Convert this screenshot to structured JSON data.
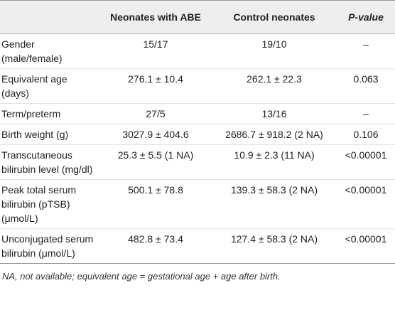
{
  "table": {
    "header": [
      "",
      "Neonates with ABE",
      "Control neonates",
      "P-value"
    ],
    "rows": [
      [
        "Gender (male/female)",
        "15/17",
        "19/10",
        "–"
      ],
      [
        "Equivalent age (days)",
        "276.1 ± 10.4",
        "262.1 ± 22.3",
        "0.063"
      ],
      [
        "Term/preterm",
        "27/5",
        "13/16",
        "–"
      ],
      [
        "Birth weight (g)",
        "3027.9 ± 404.6",
        "2686.7 ± 918.2 (2 NA)",
        "0.106"
      ],
      [
        "Transcutaneous bilirubin level (mg/dl)",
        "25.3 ± 5.5 (1 NA)",
        "10.9 ± 2.3 (11 NA)",
        "<0.00001"
      ],
      [
        "Peak total serum bilirubin (pTSB) (μmol/L)",
        "500.1 ± 78.8",
        "139.3 ± 58.3 (2 NA)",
        "<0.00001"
      ],
      [
        "Unconjugated serum bilirubin (μmol/L)",
        "482.8 ± 73.4",
        "127.4 ± 58.3 (2 NA)",
        "<0.00001"
      ]
    ],
    "footnote": "NA, not available; equivalent age = gestational age + age after birth."
  }
}
